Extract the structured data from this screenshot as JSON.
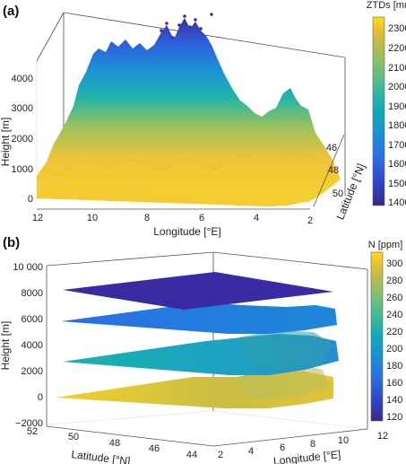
{
  "chart_data": [
    {
      "panel": "(a)",
      "type": "surface",
      "xlabel": "Longitude [°E]",
      "ylabel": "Latitude [°N]",
      "zlabel": "Height [m]",
      "x_ticks": [
        "12",
        "10",
        "8",
        "6",
        "4",
        "2"
      ],
      "y_ticks": [
        "46",
        "48",
        "50"
      ],
      "z_ticks": [
        "0",
        "1000",
        "2000",
        "3000",
        "4000"
      ],
      "xlim": [
        2,
        12
      ],
      "ylim": [
        44,
        51
      ],
      "zlim": [
        0,
        4700
      ],
      "colorbar": {
        "title": "ZTDs [mm]",
        "ticks": [
          "2300",
          "2200",
          "2100",
          "2000",
          "1900",
          "1800",
          "1700",
          "1600",
          "1500",
          "1400"
        ],
        "range": [
          1400,
          2350
        ]
      }
    },
    {
      "panel": "(b)",
      "type": "surface",
      "xlabel": "Longitude [°E]",
      "ylabel": "Latitude [°N]",
      "zlabel": "Height [m]",
      "x_ticks": [
        "2",
        "4",
        "6",
        "8",
        "10",
        "12"
      ],
      "y_ticks": [
        "52",
        "50",
        "48",
        "46",
        "44"
      ],
      "z_ticks": [
        "10 000",
        "8000",
        "6000",
        "4000",
        "2000",
        "0",
        "−2000"
      ],
      "zlim": [
        -2000,
        10000
      ],
      "layers_height_m": [
        0,
        2700,
        5300,
        8000
      ],
      "colorbar": {
        "title": "N [ppm]",
        "ticks": [
          "300",
          "280",
          "260",
          "240",
          "220",
          "200",
          "180",
          "160",
          "140",
          "120"
        ],
        "range": [
          110,
          310
        ]
      }
    }
  ],
  "colors": {
    "parula": [
      "#352a87",
      "#2c45c9",
      "#2a6ee6",
      "#1b8fd3",
      "#0eaab8",
      "#3bb99a",
      "#82c06b",
      "#c5bb45",
      "#f4c22e",
      "#f9e319"
    ]
  }
}
